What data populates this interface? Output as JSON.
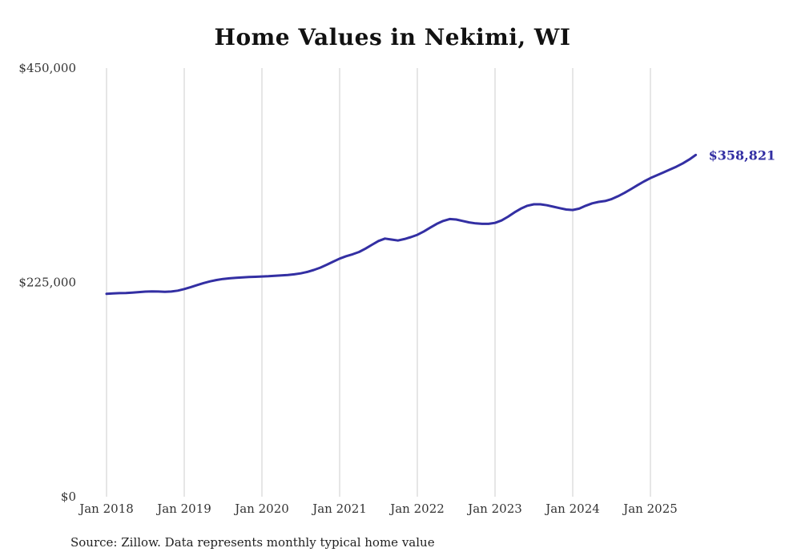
{
  "chart_data": {
    "type": "line",
    "title": "Home Values in Nekimi, WI",
    "series_name": "Monthly typical home value",
    "source": "Source: Zillow. Data represents monthly typical home value",
    "line_color": "#332fa3",
    "end_label": "$358,821",
    "ylim": [
      0,
      450000
    ],
    "yticks": [
      {
        "value": 0,
        "label": "$0"
      },
      {
        "value": 225000,
        "label": "$225,000"
      },
      {
        "value": 450000,
        "label": "$450,000"
      }
    ],
    "xticks": [
      {
        "index": 0,
        "label": "Jan 2018"
      },
      {
        "index": 12,
        "label": "Jan 2019"
      },
      {
        "index": 24,
        "label": "Jan 2020"
      },
      {
        "index": 36,
        "label": "Jan 2021"
      },
      {
        "index": 48,
        "label": "Jan 2022"
      },
      {
        "index": 60,
        "label": "Jan 2023"
      },
      {
        "index": 72,
        "label": "Jan 2024"
      },
      {
        "index": 84,
        "label": "Jan 2025"
      }
    ],
    "x": [
      "2018-01",
      "2018-02",
      "2018-03",
      "2018-04",
      "2018-05",
      "2018-06",
      "2018-07",
      "2018-08",
      "2018-09",
      "2018-10",
      "2018-11",
      "2018-12",
      "2019-01",
      "2019-02",
      "2019-03",
      "2019-04",
      "2019-05",
      "2019-06",
      "2019-07",
      "2019-08",
      "2019-09",
      "2019-10",
      "2019-11",
      "2019-12",
      "2020-01",
      "2020-02",
      "2020-03",
      "2020-04",
      "2020-05",
      "2020-06",
      "2020-07",
      "2020-08",
      "2020-09",
      "2020-10",
      "2020-11",
      "2020-12",
      "2021-01",
      "2021-02",
      "2021-03",
      "2021-04",
      "2021-05",
      "2021-06",
      "2021-07",
      "2021-08",
      "2021-09",
      "2021-10",
      "2021-11",
      "2021-12",
      "2022-01",
      "2022-02",
      "2022-03",
      "2022-04",
      "2022-05",
      "2022-06",
      "2022-07",
      "2022-08",
      "2022-09",
      "2022-10",
      "2022-11",
      "2022-12",
      "2023-01",
      "2023-02",
      "2023-03",
      "2023-04",
      "2023-05",
      "2023-06",
      "2023-07",
      "2023-08",
      "2023-09",
      "2023-10",
      "2023-11",
      "2023-12",
      "2024-01",
      "2024-02",
      "2024-03",
      "2024-04",
      "2024-05",
      "2024-06",
      "2024-07",
      "2024-08",
      "2024-09",
      "2024-10",
      "2024-11",
      "2024-12",
      "2025-01",
      "2025-02",
      "2025-03",
      "2025-04",
      "2025-05",
      "2025-06",
      "2025-07",
      "2025-08"
    ],
    "values": [
      213000,
      213400,
      213700,
      213900,
      214300,
      214800,
      215300,
      215600,
      215400,
      215100,
      215400,
      216300,
      218000,
      220000,
      222200,
      224300,
      226100,
      227500,
      228600,
      229300,
      229800,
      230200,
      230600,
      230900,
      231200,
      231500,
      231900,
      232300,
      232800,
      233500,
      234500,
      236000,
      238000,
      240500,
      243500,
      246800,
      250000,
      252500,
      254500,
      257000,
      260500,
      264500,
      268500,
      271000,
      270000,
      269000,
      270500,
      272500,
      275000,
      278500,
      282500,
      286500,
      289500,
      291500,
      291000,
      289500,
      288000,
      287000,
      286500,
      286500,
      287500,
      290000,
      294000,
      298500,
      302500,
      305500,
      307000,
      307000,
      306000,
      304500,
      303000,
      301500,
      301000,
      302500,
      305500,
      308000,
      309500,
      310500,
      312500,
      315500,
      319000,
      323000,
      327000,
      331000,
      334500,
      337500,
      340500,
      343500,
      346500,
      350000,
      354000,
      358821
    ]
  }
}
